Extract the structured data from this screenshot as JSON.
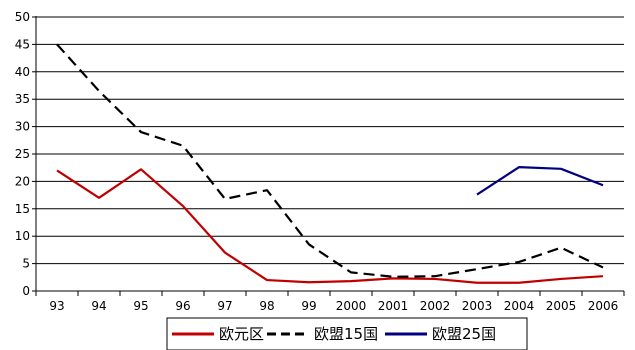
{
  "chart_data": {
    "type": "line",
    "x": [
      "93",
      "94",
      "95",
      "96",
      "97",
      "98",
      "99",
      "2000",
      "2001",
      "2002",
      "2003",
      "2004",
      "2005",
      "2006"
    ],
    "ylim": [
      0,
      50
    ],
    "yticks": [
      0,
      5,
      10,
      15,
      20,
      25,
      30,
      35,
      40,
      45,
      50
    ],
    "grid": "horizontal",
    "legend_position": "bottom",
    "series": [
      {
        "name": "欧元区",
        "color": "#c00000",
        "style": "solid",
        "values": [
          22,
          17,
          22.2,
          15.5,
          7,
          2,
          1.6,
          1.8,
          2.3,
          2.2,
          1.5,
          1.5,
          2.2,
          2.7
        ]
      },
      {
        "name": "欧盟15国",
        "color": "#000000",
        "style": "dashed",
        "values": [
          45,
          36.5,
          29,
          26.5,
          16.8,
          18.4,
          8.5,
          3.4,
          2.6,
          2.7,
          4,
          5.3,
          7.9,
          4.3
        ]
      },
      {
        "name": "欧盟25国",
        "color": "#000080",
        "style": "solid",
        "values": [
          null,
          null,
          null,
          null,
          null,
          null,
          null,
          null,
          null,
          null,
          17.6,
          22.6,
          22.3,
          19.3
        ]
      }
    ]
  }
}
